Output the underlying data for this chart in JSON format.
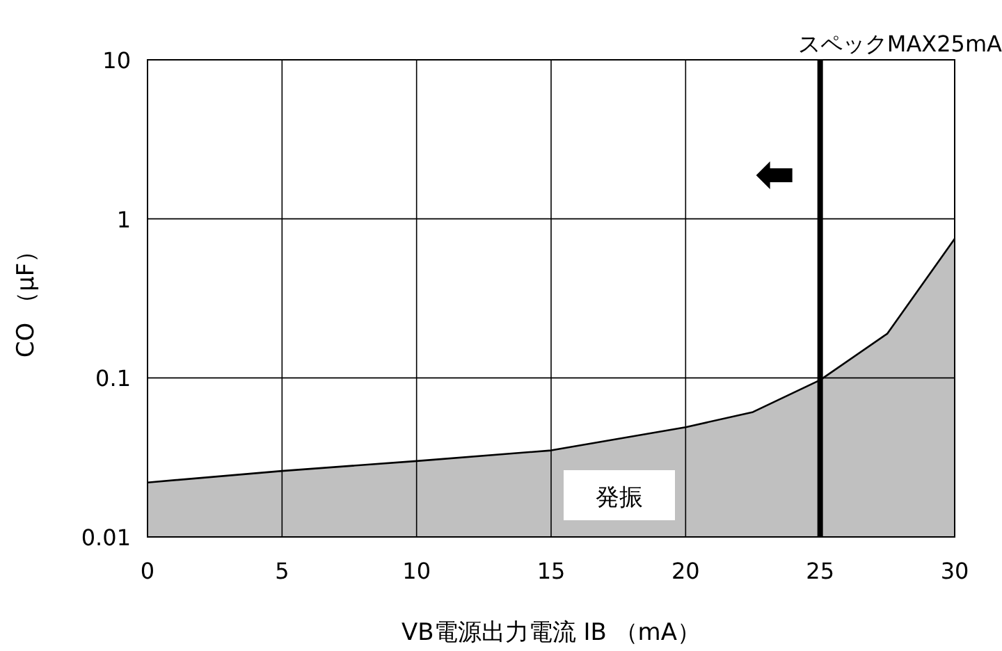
{
  "chart_data": {
    "type": "area",
    "xlabel": "VB電源出力電流 IB （mA）",
    "ylabel": "CO （μF）",
    "log": "y",
    "grid": true,
    "x": [
      0,
      5,
      10,
      15,
      20,
      22.5,
      25,
      27.5,
      30
    ],
    "series": [
      {
        "color": "#c0c0c0",
        "values": [
          0.022,
          0.026,
          0.03,
          0.035,
          0.049,
          0.061,
          0.097,
          0.19,
          0.75
        ]
      }
    ],
    "xlim": [
      0,
      30
    ],
    "xticks": [
      0,
      5,
      10,
      15,
      20,
      25,
      30
    ],
    "ylim": [
      0.01,
      10
    ],
    "yticks": [
      0.01,
      0.1,
      1,
      10
    ],
    "ref_lines": [
      {
        "axis": "x",
        "value": 25,
        "label": "スペックMAX25mA",
        "color": "#000000"
      }
    ],
    "annotations": [
      "発振"
    ]
  }
}
